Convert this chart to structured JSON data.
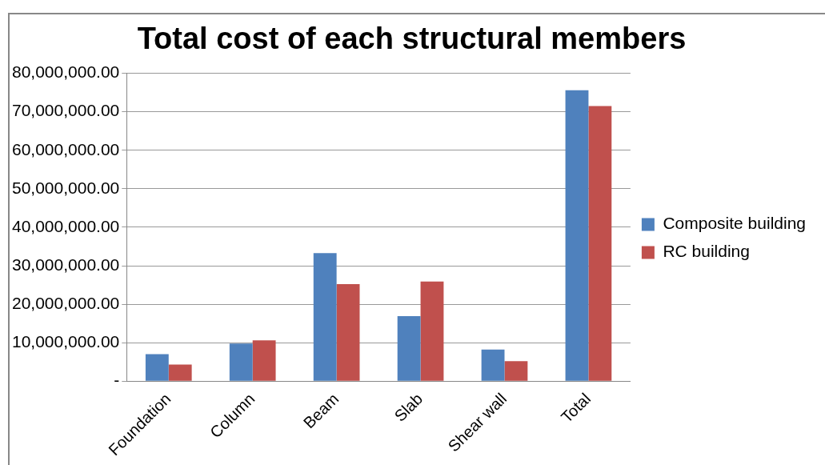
{
  "chart_data": {
    "type": "bar",
    "title": "Total cost of each structural members",
    "categories": [
      "Foundation",
      "Column",
      "Beam",
      "Slab",
      "Shear wall",
      "Total"
    ],
    "series": [
      {
        "name": "Composite building",
        "color": "#4f81bd",
        "values": [
          7000000,
          9800000,
          33300000,
          16900000,
          8200000,
          75600000
        ]
      },
      {
        "name": "RC building",
        "color": "#c0504d",
        "values": [
          4300000,
          10600000,
          25200000,
          25900000,
          5200000,
          71500000
        ]
      }
    ],
    "ylim": [
      0,
      80000000
    ],
    "yticks": [
      {
        "value": 0,
        "label": "-"
      },
      {
        "value": 10000000,
        "label": "10,000,000.00"
      },
      {
        "value": 20000000,
        "label": "20,000,000.00"
      },
      {
        "value": 30000000,
        "label": "30,000,000.00"
      },
      {
        "value": 40000000,
        "label": "40,000,000.00"
      },
      {
        "value": 50000000,
        "label": "50,000,000.00"
      },
      {
        "value": 60000000,
        "label": "60,000,000.00"
      },
      {
        "value": 70000000,
        "label": "70,000,000.00"
      },
      {
        "value": 80000000,
        "label": "80,000,000.00"
      }
    ],
    "grid": "y",
    "legend": "right"
  }
}
